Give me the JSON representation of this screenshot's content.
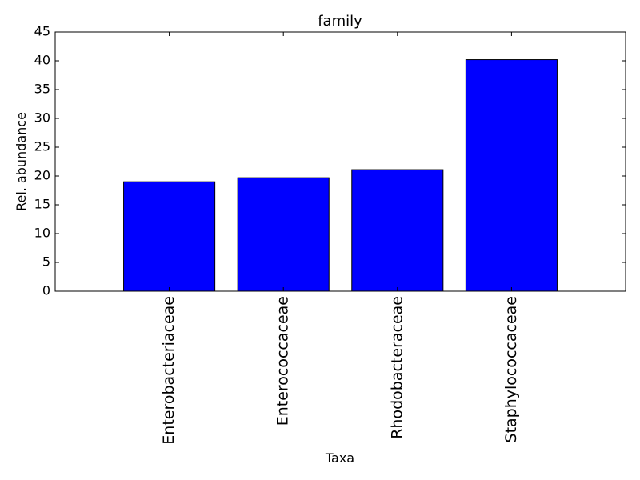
{
  "chart_data": {
    "type": "bar",
    "title": "family",
    "xlabel": "Taxa",
    "ylabel": "Rel. abundance",
    "categories": [
      "Enterobacteriaceae",
      "Enterococcaceae",
      "Rhodobacteraceae",
      "Staphylococcaceae"
    ],
    "values": [
      19.0,
      19.7,
      21.1,
      40.2
    ],
    "ylim": [
      0,
      45
    ],
    "yticks": [
      "0",
      "5",
      "10",
      "15",
      "20",
      "25",
      "30",
      "35",
      "40",
      "45"
    ],
    "grid": false,
    "legend": "none",
    "bar_color": "#0000ff",
    "edge_color": "#000000"
  }
}
